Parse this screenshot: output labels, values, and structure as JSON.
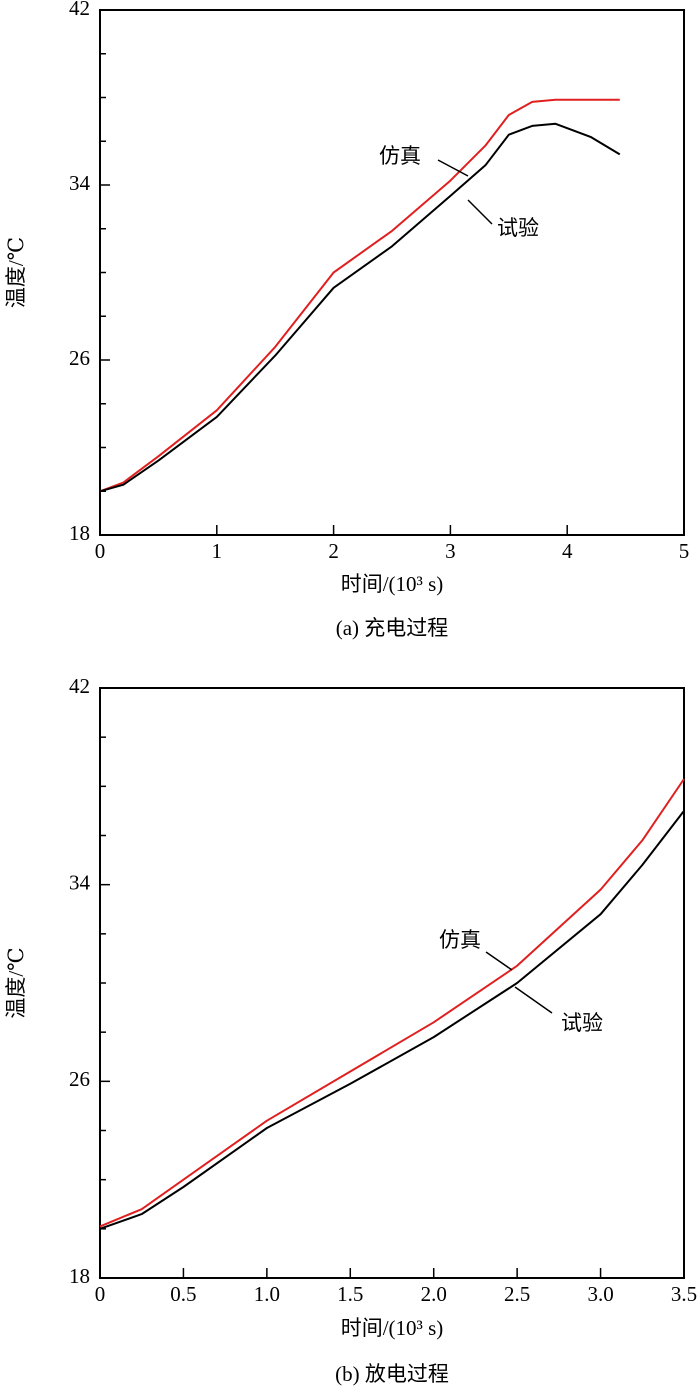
{
  "chart_data": [
    {
      "type": "line",
      "caption": "(a) 充电过程",
      "xlabel": "时间/(10³ s)",
      "ylabel": "温度/℃",
      "x": [
        0,
        0.2,
        0.5,
        1.0,
        1.5,
        2.0,
        2.5,
        3.0,
        3.3,
        3.5,
        3.7,
        3.9,
        4.2,
        4.45
      ],
      "series": [
        {
          "name": "仿真",
          "color": "#e02020",
          "values": [
            20.0,
            20.4,
            21.6,
            23.7,
            26.6,
            30.0,
            31.9,
            34.2,
            35.8,
            37.2,
            37.8,
            37.9,
            37.9,
            37.9
          ]
        },
        {
          "name": "试验",
          "color": "#000000",
          "values": [
            20.0,
            20.3,
            21.4,
            23.4,
            26.2,
            29.3,
            31.2,
            33.5,
            34.9,
            36.3,
            36.7,
            36.8,
            36.2,
            35.4
          ]
        }
      ],
      "xlim": [
        0,
        5
      ],
      "xticks": [
        0,
        1,
        2,
        3,
        4,
        5
      ],
      "ylim": [
        18,
        42
      ],
      "yticks": [
        18,
        26,
        34,
        42
      ],
      "yminorticks": [
        20,
        22,
        24,
        28,
        30,
        32,
        36,
        38,
        40
      ]
    },
    {
      "type": "line",
      "caption": "(b) 放电过程",
      "xlabel": "时间/(10³ s)",
      "ylabel": "温度/℃",
      "x": [
        0,
        0.25,
        0.5,
        1.0,
        1.5,
        2.0,
        2.5,
        3.0,
        3.25,
        3.5
      ],
      "series": [
        {
          "name": "仿真",
          "color": "#e02020",
          "values": [
            20.1,
            20.8,
            22.0,
            24.4,
            26.4,
            28.4,
            30.7,
            33.8,
            35.8,
            38.3
          ]
        },
        {
          "name": "试验",
          "color": "#000000",
          "values": [
            20.0,
            20.6,
            21.7,
            24.1,
            25.9,
            27.8,
            30.0,
            32.8,
            34.8,
            37.0
          ]
        }
      ],
      "xlim": [
        0,
        3.5
      ],
      "xticks": [
        0,
        0.5,
        {
          "value": 1,
          "label": "1.0"
        },
        1.5,
        {
          "value": 2,
          "label": "2.0"
        },
        2.5,
        {
          "value": 3,
          "label": "3.0"
        },
        3.5
      ],
      "ylim": [
        18,
        42
      ],
      "yticks": [
        18,
        26,
        34,
        42
      ],
      "yminorticks": [
        20,
        22,
        24,
        28,
        30,
        32,
        36,
        38,
        40
      ]
    }
  ]
}
